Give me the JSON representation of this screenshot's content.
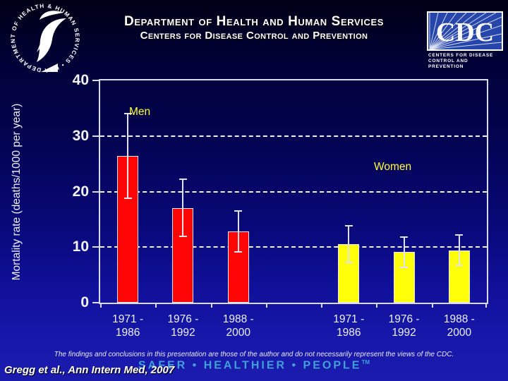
{
  "header": {
    "title_line1": "Department of Health and Human Services",
    "title_line2": "Centers for Disease Control and Prevention",
    "hhs_logo_text": "DEPARTMENT OF HEALTH & HUMAN SERVICES • USA",
    "cdc_logo": {
      "acronym": "CDC",
      "tagline_line1": "Centers for Disease",
      "tagline_line2": "Control and Prevention"
    }
  },
  "chart_data": {
    "type": "bar",
    "title": "",
    "xlabel": "",
    "ylabel": "Mortality rate (deaths/1000 per year)",
    "ylim": [
      0,
      40
    ],
    "yticks": [
      0,
      10,
      20,
      30,
      40
    ],
    "gridlines": [
      10,
      20,
      30
    ],
    "grid": "horizontal-dashed",
    "legend_position": "inline-labels",
    "error_bars": true,
    "categories": [
      "1971 - 1986",
      "1976 - 1992",
      "1988 - 2000"
    ],
    "series": [
      {
        "name": "Men",
        "color": "#ff0606",
        "values": [
          26.4,
          17.0,
          12.8
        ],
        "ci_low": [
          18.8,
          11.9,
          9.2
        ],
        "ci_high": [
          34.0,
          22.2,
          16.5
        ]
      },
      {
        "name": "Women",
        "color": "#ffff0a",
        "values": [
          10.6,
          9.1,
          9.4
        ],
        "ci_low": [
          7.3,
          6.4,
          6.7
        ],
        "ci_high": [
          13.8,
          11.8,
          12.2
        ]
      }
    ]
  },
  "footer": {
    "disclaimer": "The findings and conclusions in this presentation are those of the author and do not necessarily represent the views of the CDC.",
    "citation": "Gregg et al., Ann Intern Med, 2007",
    "tagline": "SAFER • HEALTHIER • PEOPLE",
    "tagline_tm": "TM"
  },
  "colors": {
    "men_bar": "#ff0606",
    "women_bar": "#ffff0a",
    "series_label_yellow": "#ffff3c",
    "axis_white": "#d9dbe8",
    "tagline_blue": "#41a0d8",
    "background_top": "#000016",
    "background_bottom": "#1b1bae"
  }
}
